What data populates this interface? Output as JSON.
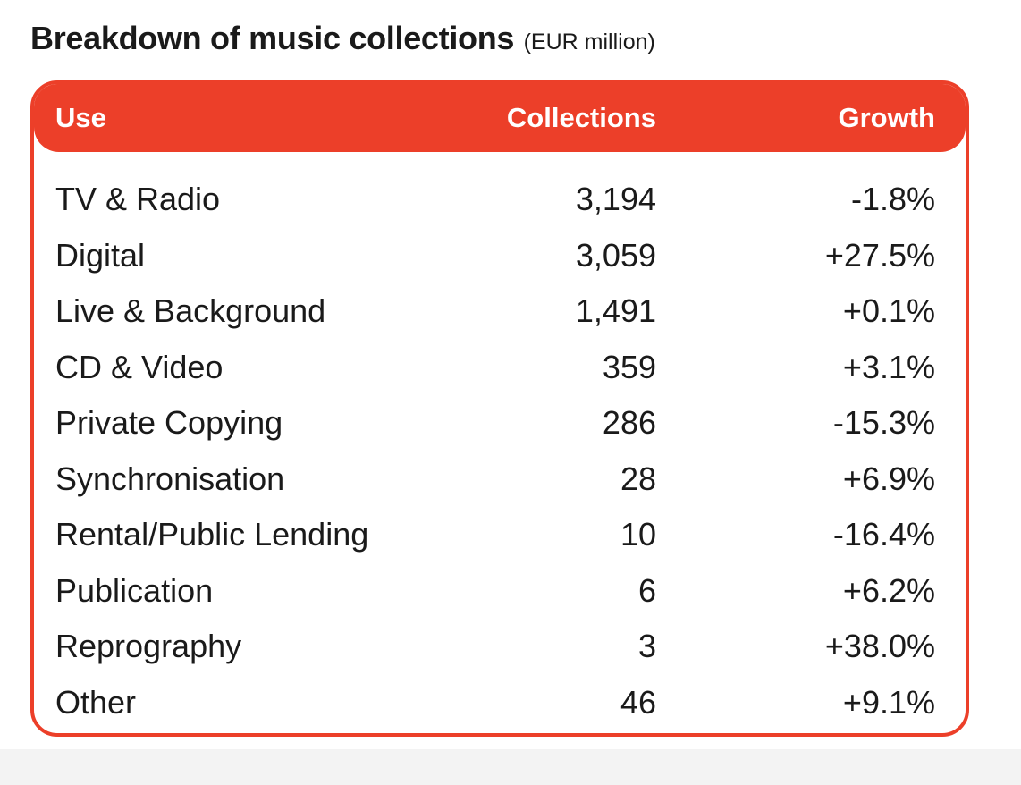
{
  "title": "Breakdown of music collections",
  "unit": "(EUR million)",
  "columns": {
    "use": "Use",
    "collections": "Collections",
    "growth": "Growth"
  },
  "rows": [
    {
      "use": "TV & Radio",
      "collections": "3,194",
      "growth": "-1.8%"
    },
    {
      "use": "Digital",
      "collections": "3,059",
      "growth": "+27.5%"
    },
    {
      "use": "Live & Background",
      "collections": "1,491",
      "growth": "+0.1%"
    },
    {
      "use": "CD & Video",
      "collections": "359",
      "growth": "+3.1%"
    },
    {
      "use": "Private Copying",
      "collections": "286",
      "growth": "-15.3%"
    },
    {
      "use": "Synchronisation",
      "collections": "28",
      "growth": "+6.9%"
    },
    {
      "use": "Rental/Public Lending",
      "collections": "10",
      "growth": "-16.4%"
    },
    {
      "use": "Publication",
      "collections": "6",
      "growth": "+6.2%"
    },
    {
      "use": "Reprography",
      "collections": "3",
      "growth": "+38.0%"
    },
    {
      "use": "Other",
      "collections": "46",
      "growth": "+9.1%"
    }
  ],
  "colors": {
    "accent": "#ec3f29",
    "text": "#1a1a1a"
  },
  "chart_data": {
    "type": "table",
    "title": "Breakdown of music collections",
    "unit": "EUR million",
    "columns": [
      "Use",
      "Collections",
      "Growth"
    ],
    "categories": [
      "TV & Radio",
      "Digital",
      "Live & Background",
      "CD & Video",
      "Private Copying",
      "Synchronisation",
      "Rental/Public Lending",
      "Publication",
      "Reprography",
      "Other"
    ],
    "series": [
      {
        "name": "Collections",
        "values": [
          3194,
          3059,
          1491,
          359,
          286,
          28,
          10,
          6,
          3,
          46
        ]
      },
      {
        "name": "Growth",
        "values": [
          -1.8,
          27.5,
          0.1,
          3.1,
          -15.3,
          6.9,
          -16.4,
          6.2,
          38.0,
          9.1
        ]
      }
    ]
  }
}
